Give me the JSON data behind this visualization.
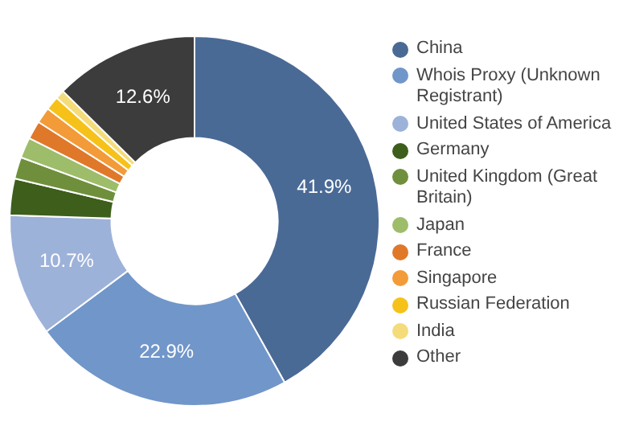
{
  "chart_data": {
    "type": "donut",
    "categories": [
      "China",
      "Whois Proxy (Unknown Registrant)",
      "United States of America",
      "Germany",
      "United Kingdom (Great Britain)",
      "Japan",
      "France",
      "Singapore",
      "Russian Federation",
      "India",
      "Other"
    ],
    "values": [
      41.9,
      22.9,
      10.7,
      3.2,
      1.9,
      1.8,
      1.6,
      1.4,
      1.2,
      0.8,
      12.6
    ],
    "value_labels": [
      "41.9%",
      "22.9%",
      "10.7%",
      null,
      null,
      null,
      null,
      null,
      null,
      null,
      "12.6%"
    ],
    "colors": [
      "#4a6a96",
      "#7196c9",
      "#9db2d9",
      "#3e5e1c",
      "#6f8f3c",
      "#9dbd6a",
      "#e0782a",
      "#f29b38",
      "#f6c21a",
      "#f5dc7a",
      "#3c3c3c"
    ],
    "legend": "right"
  }
}
